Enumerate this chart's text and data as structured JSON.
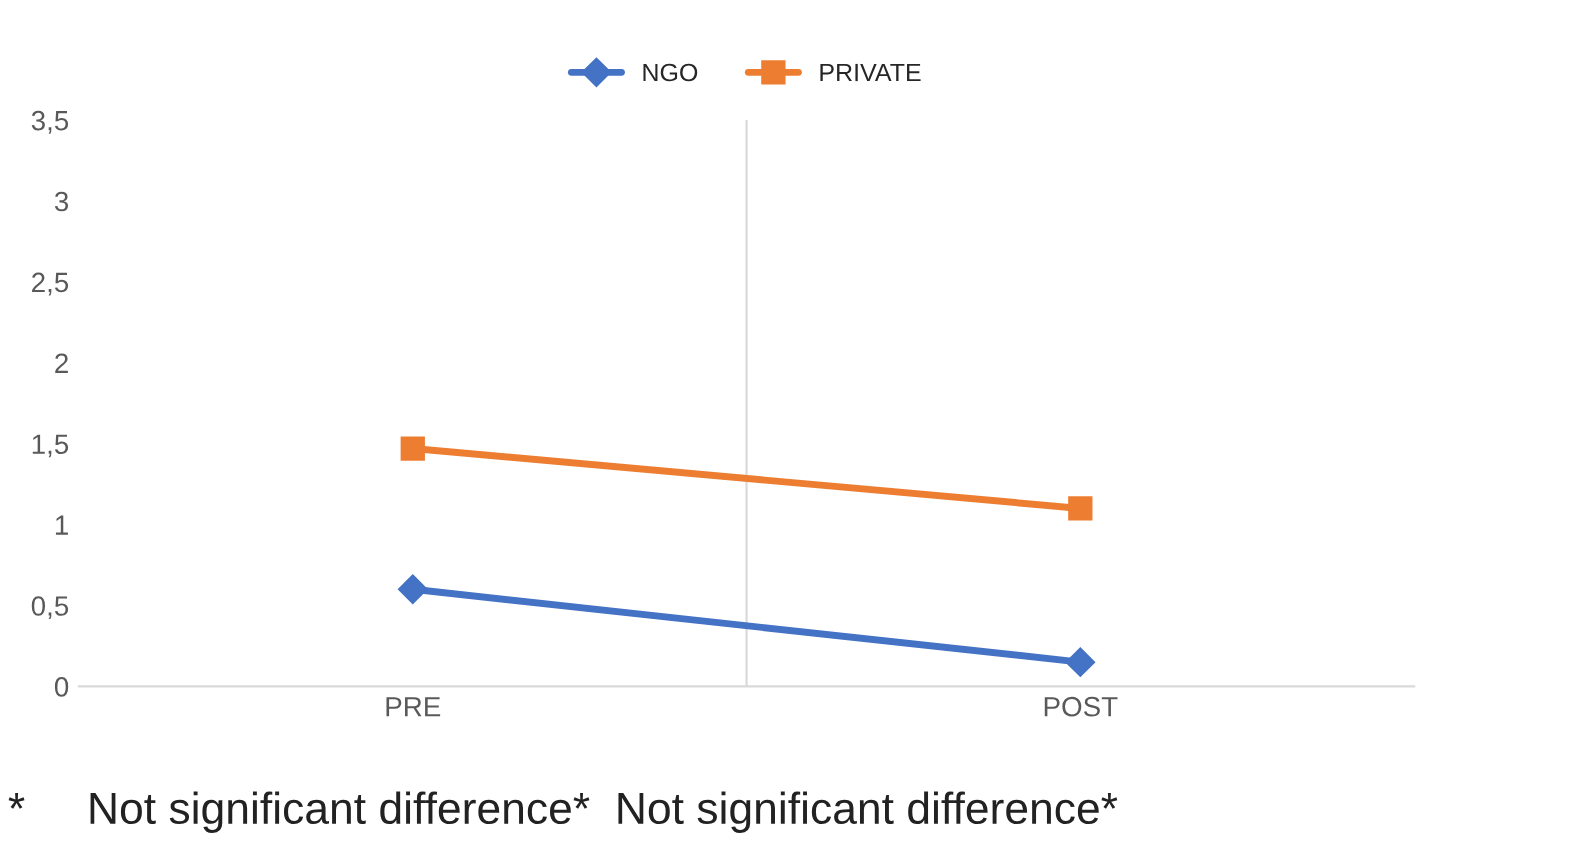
{
  "chart_data": {
    "type": "line",
    "categories": [
      "PRE",
      "POST"
    ],
    "series": [
      {
        "name": "NGO",
        "color": "#4472c4",
        "values": [
          0.6,
          0.15
        ],
        "marker": "diamond"
      },
      {
        "name": "PRIVATE",
        "color": "#ed7d31",
        "values": [
          1.47,
          1.1
        ],
        "marker": "square"
      }
    ],
    "ylim": [
      0,
      3.5
    ],
    "yticks": [
      0,
      {
        "value": 0.5,
        "label": "0,5"
      },
      1,
      {
        "value": 1.5,
        "label": "1,5"
      },
      2,
      {
        "value": 2.5,
        "label": "2,5"
      },
      3,
      {
        "value": 3.5,
        "label": "3,5"
      }
    ],
    "grid": "x",
    "legend": "top",
    "line_style": "solid",
    "annotations": [
      "*     Not significant difference*  Not significant difference*"
    ]
  }
}
